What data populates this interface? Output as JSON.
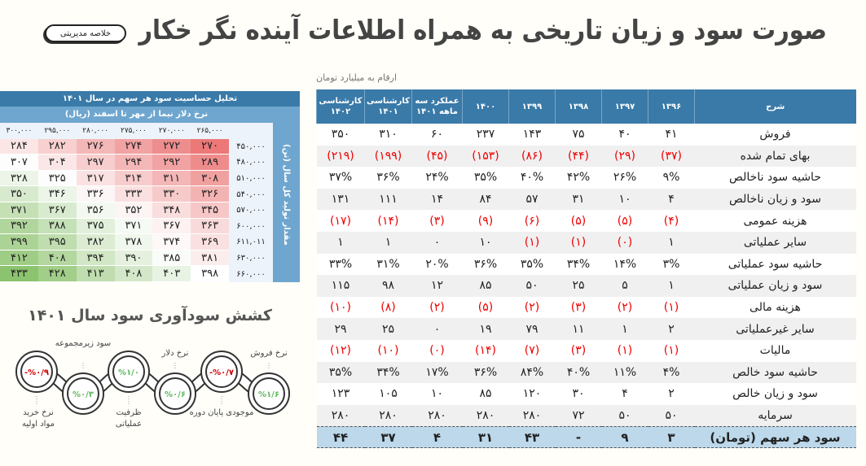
{
  "header": {
    "title": "صورت سود و زیان تاریخی به همراه اطلاعات آینده نگر خکار",
    "summary_button": "خلاصه مدیریتی"
  },
  "main": {
    "unit": "ارقام به میلیارد تومان",
    "columns": [
      "شرح",
      "۱۳۹۶",
      "۱۳۹۷",
      "۱۳۹۸",
      "۱۳۹۹",
      "۱۴۰۰",
      "عملکرد سه ماهه ۱۴۰۱",
      "کارشناسی ۱۴۰۱",
      "کارشناسی ۱۴۰۲"
    ],
    "rows": [
      {
        "label": "فروش",
        "values": [
          "۴۱",
          "۴۰",
          "۷۵",
          "۱۴۳",
          "۲۳۷",
          "۶۰",
          "۳۱۰",
          "۳۵۰"
        ]
      },
      {
        "label": "بهای تمام شده",
        "values": [
          "(۳۷)",
          "(۲۹)",
          "(۴۴)",
          "(۸۶)",
          "(۱۵۳)",
          "(۴۵)",
          "(۱۹۹)",
          "(۲۱۹)"
        ]
      },
      {
        "label": "حاشیه سود ناخالص",
        "values": [
          "۹%",
          "۲۶%",
          "۴۲%",
          "۴۰%",
          "۳۵%",
          "۲۴%",
          "۳۶%",
          "۳۷%"
        ]
      },
      {
        "label": "سود و زیان ناخالص",
        "values": [
          "۴",
          "۱۰",
          "۳۱",
          "۵۷",
          "۸۴",
          "۱۴",
          "۱۱۱",
          "۱۳۱"
        ]
      },
      {
        "label": "هزینه عمومی",
        "values": [
          "(۴)",
          "(۵)",
          "(۵)",
          "(۶)",
          "(۹)",
          "(۳)",
          "(۱۴)",
          "(۱۷)"
        ]
      },
      {
        "label": "سایر عملیاتی",
        "values": [
          "۱",
          "(۰)",
          "(۱)",
          "(۱)",
          "۱۰",
          "۰",
          "۱",
          "۱"
        ]
      },
      {
        "label": "حاشیه سود عملیاتی",
        "values": [
          "۳%",
          "۱۴%",
          "۳۴%",
          "۳۵%",
          "۳۶%",
          "۲۰%",
          "۳۱%",
          "۳۳%"
        ]
      },
      {
        "label": "سود و زیان عملیاتی",
        "values": [
          "۱",
          "۵",
          "۲۵",
          "۵۰",
          "۸۵",
          "۱۲",
          "۹۸",
          "۱۱۵"
        ]
      },
      {
        "label": "هزینه مالی",
        "values": [
          "(۱)",
          "(۲)",
          "(۳)",
          "(۲)",
          "(۵)",
          "(۲)",
          "(۸)",
          "(۱۰)"
        ]
      },
      {
        "label": "سایر غیرعملیاتی",
        "values": [
          "۲",
          "۱",
          "۱۱",
          "۷۹",
          "۱۹",
          "۰",
          "۲۵",
          "۲۹"
        ]
      },
      {
        "label": "مالیات",
        "values": [
          "(۱)",
          "(۱)",
          "(۳)",
          "(۷)",
          "(۱۴)",
          "(۰)",
          "(۱۰)",
          "(۱۲)"
        ]
      },
      {
        "label": "حاشیه سود خالص",
        "values": [
          "۴%",
          "۱۱%",
          "۴۰%",
          "۸۴%",
          "۳۶%",
          "۱۷%",
          "۳۴%",
          "۳۵%"
        ]
      },
      {
        "label": "سود و زیان خالص",
        "values": [
          "۲",
          "۴",
          "۳۰",
          "۱۲۰",
          "۸۵",
          "۱۰",
          "۱۰۵",
          "۱۲۳"
        ]
      },
      {
        "label": "سرمایه",
        "values": [
          "۵۰",
          "۵۰",
          "۷۲",
          "۲۸۰",
          "۲۸۰",
          "۲۸۰",
          "۲۸۰",
          "۲۸۰"
        ]
      },
      {
        "label": "سود هر سهم (تومان)",
        "values": [
          "۳",
          "۹",
          "-",
          "۴۳",
          "۳۱",
          "۴",
          "۳۷",
          "۴۴"
        ]
      }
    ]
  },
  "sensitivity": {
    "title": "تحلیل حساسیت سود هر سهم در سال ۱۴۰۱",
    "col_title": "نرخ دلار نیما از مهر تا اسفند (ریال)",
    "row_title": "مقدار تولید کل سال (تن)",
    "cols": [
      "۲۶۵,۰۰۰",
      "۲۷۰,۰۰۰",
      "۲۷۵,۰۰۰",
      "۲۸۰,۰۰۰",
      "۲۹۵,۰۰۰",
      "۳۰۰,۰۰۰"
    ],
    "rows": [
      {
        "label": "۴۵۰,۰۰۰",
        "values": [
          270,
          272,
          274,
          276,
          282,
          284
        ]
      },
      {
        "label": "۴۸۰,۰۰۰",
        "values": [
          289,
          292,
          294,
          297,
          304,
          307
        ]
      },
      {
        "label": "۵۱۰,۰۰۰",
        "values": [
          308,
          311,
          314,
          317,
          325,
          328
        ]
      },
      {
        "label": "۵۴۰,۰۰۰",
        "values": [
          326,
          330,
          333,
          336,
          346,
          350
        ]
      },
      {
        "label": "۵۷۰,۰۰۰",
        "values": [
          345,
          348,
          352,
          356,
          367,
          371
        ]
      },
      {
        "label": "۶۰۰,۰۰۰",
        "values": [
          363,
          367,
          371,
          375,
          388,
          392
        ]
      },
      {
        "label": "۶۱۱,۰۱۱",
        "values": [
          369,
          374,
          378,
          382,
          395,
          399
        ]
      },
      {
        "label": "۶۳۰,۰۰۰",
        "values": [
          381,
          385,
          390,
          394,
          408,
          412
        ]
      },
      {
        "label": "۶۶۰,۰۰۰",
        "values": [
          398,
          403,
          408,
          413,
          428,
          433
        ]
      }
    ]
  },
  "pull": {
    "title": "کشش سودآوری سود سال ۱۴۰۱",
    "items": [
      {
        "label": "نرخ خرید مواد اولیه",
        "value": "-%۰/۹",
        "negative": true
      },
      {
        "label": "سود زیرمجموعه",
        "value": "%۰/۳",
        "negative": false
      },
      {
        "label": "ظرفیت عملیاتی",
        "value": "%۱/۰",
        "negative": false
      },
      {
        "label": "نرخ دلار",
        "value": "%۰/۶",
        "negative": false
      },
      {
        "label": "موجودی پایان دوره",
        "value": "-%۰/۷",
        "negative": true
      },
      {
        "label": "نرخ فروش",
        "value": "%۱/۶",
        "negative": false
      }
    ],
    "colors": {
      "positive": "#5cb85c",
      "negative": "#d00000"
    }
  }
}
